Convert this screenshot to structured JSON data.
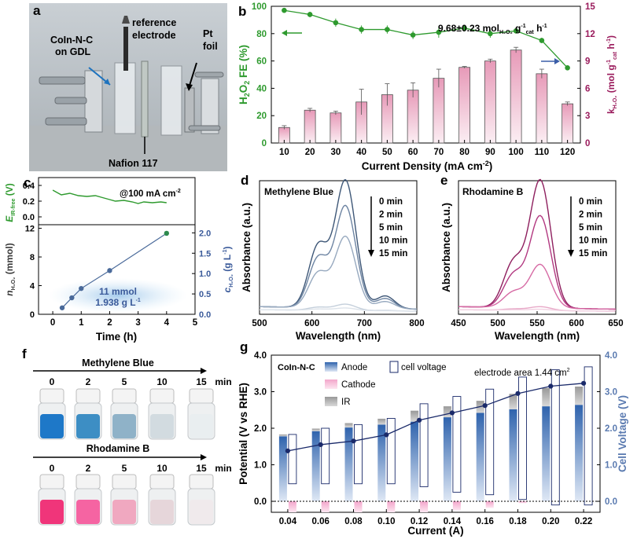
{
  "panels": {
    "a": {
      "letter": "a",
      "label_coin": [
        "CoIn-N-C",
        "on GDL"
      ],
      "label_reference": [
        "reference",
        "electrode"
      ],
      "label_pt": [
        "Pt",
        "foil"
      ],
      "label_nafion": "Nafion 117"
    },
    "f": {
      "letter": "f",
      "mb_title": "Methylene Blue",
      "rb_title": "Rhodamine B",
      "times": [
        "0",
        "2",
        "5",
        "10",
        "15"
      ],
      "unit": "min",
      "mb_colors": [
        "#1e78c8",
        "#3d8ec4",
        "#8fb2c8",
        "#d2dbe0",
        "#e9eef0"
      ],
      "rb_colors": [
        "#f0357a",
        "#f564a2",
        "#f0a8c0",
        "#e6d6da",
        "#f0eaec"
      ]
    }
  },
  "chart_data": [
    {
      "panel": "b",
      "type": "bar+line",
      "xlabel": "Current Density (mA cm⁻²)",
      "ylabel_left": "H₂O₂ FE (%)",
      "ylabel_right": "k_H₂O₂ (mol g⁻¹cat h⁻¹)",
      "annotation": "9.68±0.23 mol_H₂O₂ g⁻¹cat h⁻¹",
      "categories": [
        "10",
        "20",
        "30",
        "40",
        "50",
        "60",
        "70",
        "80",
        "90",
        "100",
        "110",
        "120"
      ],
      "ylim_left": [
        0,
        100
      ],
      "ylim_right": [
        0,
        15
      ],
      "yticks_left": [
        0,
        20,
        40,
        60,
        80,
        100
      ],
      "yticks_right": [
        0,
        3,
        6,
        9,
        12,
        15
      ],
      "fe_line": [
        97,
        94,
        88,
        83,
        83,
        79,
        81,
        84,
        80,
        82,
        75,
        55
      ],
      "fe_err": [
        1,
        2,
        3,
        3,
        3,
        3,
        4,
        2,
        3,
        2,
        2,
        1
      ],
      "rate_bars": [
        1.7,
        3.6,
        3.3,
        4.5,
        5.3,
        5.8,
        7.1,
        8.3,
        9.0,
        10.2,
        7.6,
        4.3
      ],
      "rate_err": [
        0.2,
        0.2,
        0.2,
        1.4,
        1.2,
        0.8,
        1.0,
        0.1,
        0.2,
        0.3,
        0.5,
        0.2
      ],
      "line_color": "#2e9a2e",
      "bar_color": "#e8a8c0"
    },
    {
      "panel": "c",
      "type": "line",
      "xlabel": "Time (h)",
      "ylabel_top": "E_IR-free (V)",
      "top_annotation": "@100 mA cm⁻²",
      "ylabel_bottom_left": "n_H₂O₂ (mmol)",
      "ylabel_bottom_right": "c_H₂O₂ (g L⁻¹)",
      "annotation": [
        "11 mmol",
        "1.938 g L⁻¹"
      ],
      "xlim": [
        -0.5,
        5
      ],
      "xticks": [
        0,
        1,
        2,
        3,
        4,
        5
      ],
      "top_ylim": [
        -0.1,
        0.5
      ],
      "top_yticks": [
        0.0,
        0.2,
        0.4
      ],
      "bottom_ylim_left": [
        0,
        12.5
      ],
      "bottom_yticks_left": [
        0,
        4,
        8,
        12
      ],
      "bottom_ylim_right": [
        0,
        2.2
      ],
      "bottom_yticks_right": [
        0.0,
        0.5,
        1.0,
        1.5,
        2.0
      ],
      "n_points": [
        [
          0.33,
          0.9
        ],
        [
          0.67,
          2.3
        ],
        [
          1.0,
          3.6
        ],
        [
          2.0,
          6.1
        ],
        [
          4.0,
          11.3
        ]
      ],
      "potential_trace": [
        [
          0,
          0.34
        ],
        [
          0.3,
          0.28
        ],
        [
          0.6,
          0.3
        ],
        [
          0.9,
          0.27
        ],
        [
          1.2,
          0.26
        ],
        [
          1.5,
          0.27
        ],
        [
          1.8,
          0.24
        ],
        [
          2.0,
          0.22
        ],
        [
          2.2,
          0.2
        ],
        [
          2.5,
          0.21
        ],
        [
          2.8,
          0.19
        ],
        [
          3.0,
          0.17
        ],
        [
          3.2,
          0.19
        ],
        [
          3.5,
          0.18
        ],
        [
          3.8,
          0.19
        ],
        [
          4.0,
          0.18
        ]
      ],
      "line_color": "#4a6a9a",
      "trace_color": "#2e9a2e"
    },
    {
      "panel": "d",
      "type": "line",
      "title": "Methylene Blue",
      "xlabel": "Wavelength (nm)",
      "ylabel": "Absorbance (a.u.)",
      "xlim": [
        500,
        800
      ],
      "xticks": [
        500,
        600,
        700,
        800
      ],
      "ylim": [
        0,
        1.05
      ],
      "legend": [
        "0 min",
        "2 min",
        "5 min",
        "10 min",
        "15 min"
      ],
      "peak_wavelength": 664,
      "peak_values": [
        1.0,
        0.8,
        0.56,
        0.05,
        0.02
      ],
      "series_colors": [
        "#3e5777",
        "#6d84a2",
        "#97a9bf",
        "#c4cfdb",
        "#dde3ea"
      ]
    },
    {
      "panel": "e",
      "type": "line",
      "title": "Rhodamine B",
      "xlabel": "Wavelength (nm)",
      "ylabel": "Absorbance (a.u.)",
      "xlim": [
        450,
        650
      ],
      "xticks": [
        450,
        500,
        550,
        600,
        650
      ],
      "ylim": [
        0,
        1.05
      ],
      "legend": [
        "0 min",
        "2 min",
        "5 min",
        "10 min",
        "15 min"
      ],
      "peak_wavelength": 554,
      "peak_values": [
        1.0,
        0.72,
        0.34,
        0.03,
        0.01
      ],
      "series_colors": [
        "#8e1f5e",
        "#b23880",
        "#d66aa4",
        "#e8a9c8",
        "#f1d2e2"
      ]
    },
    {
      "panel": "g",
      "type": "stacked-bar",
      "legend_title": "CoIn-N-C",
      "legend": [
        "Anode",
        "Cathode",
        "IR",
        "cell voltage"
      ],
      "annotation": "electrode area 1.44 cm²",
      "xlabel": "Current (A)",
      "ylabel_left": "Potential (V vs RHE)",
      "ylabel_right": "Cell Voltage (V)",
      "categories": [
        "0.04",
        "0.06",
        "0.08",
        "0.10",
        "0.12",
        "0.14",
        "0.16",
        "0.18",
        "0.20",
        "0.22"
      ],
      "ylim": [
        -0.3,
        4.0
      ],
      "yticks_left": [
        0.0,
        1.0,
        2.0,
        3.0,
        4.0
      ],
      "yticks_right": [
        0.0,
        1.0,
        2.0,
        3.0,
        4.0
      ],
      "anode": [
        1.78,
        1.92,
        2.02,
        2.1,
        2.18,
        2.3,
        2.42,
        2.52,
        2.6,
        2.64
      ],
      "ir": [
        0.05,
        0.07,
        0.12,
        0.16,
        0.3,
        0.3,
        0.33,
        0.42,
        0.5,
        0.5
      ],
      "cathode": [
        0.48,
        0.48,
        0.48,
        0.48,
        0.4,
        0.25,
        0.18,
        0.05,
        0.0,
        0.0
      ],
      "cell_voltage": [
        1.38,
        1.55,
        1.65,
        1.82,
        2.22,
        2.42,
        2.62,
        2.95,
        3.15,
        3.23
      ],
      "anode_color": "#4a7cc0",
      "cathode_color": "#f0a0c8",
      "ir_color": "#a8a8a8",
      "line_color": "#1a2a6a"
    }
  ]
}
